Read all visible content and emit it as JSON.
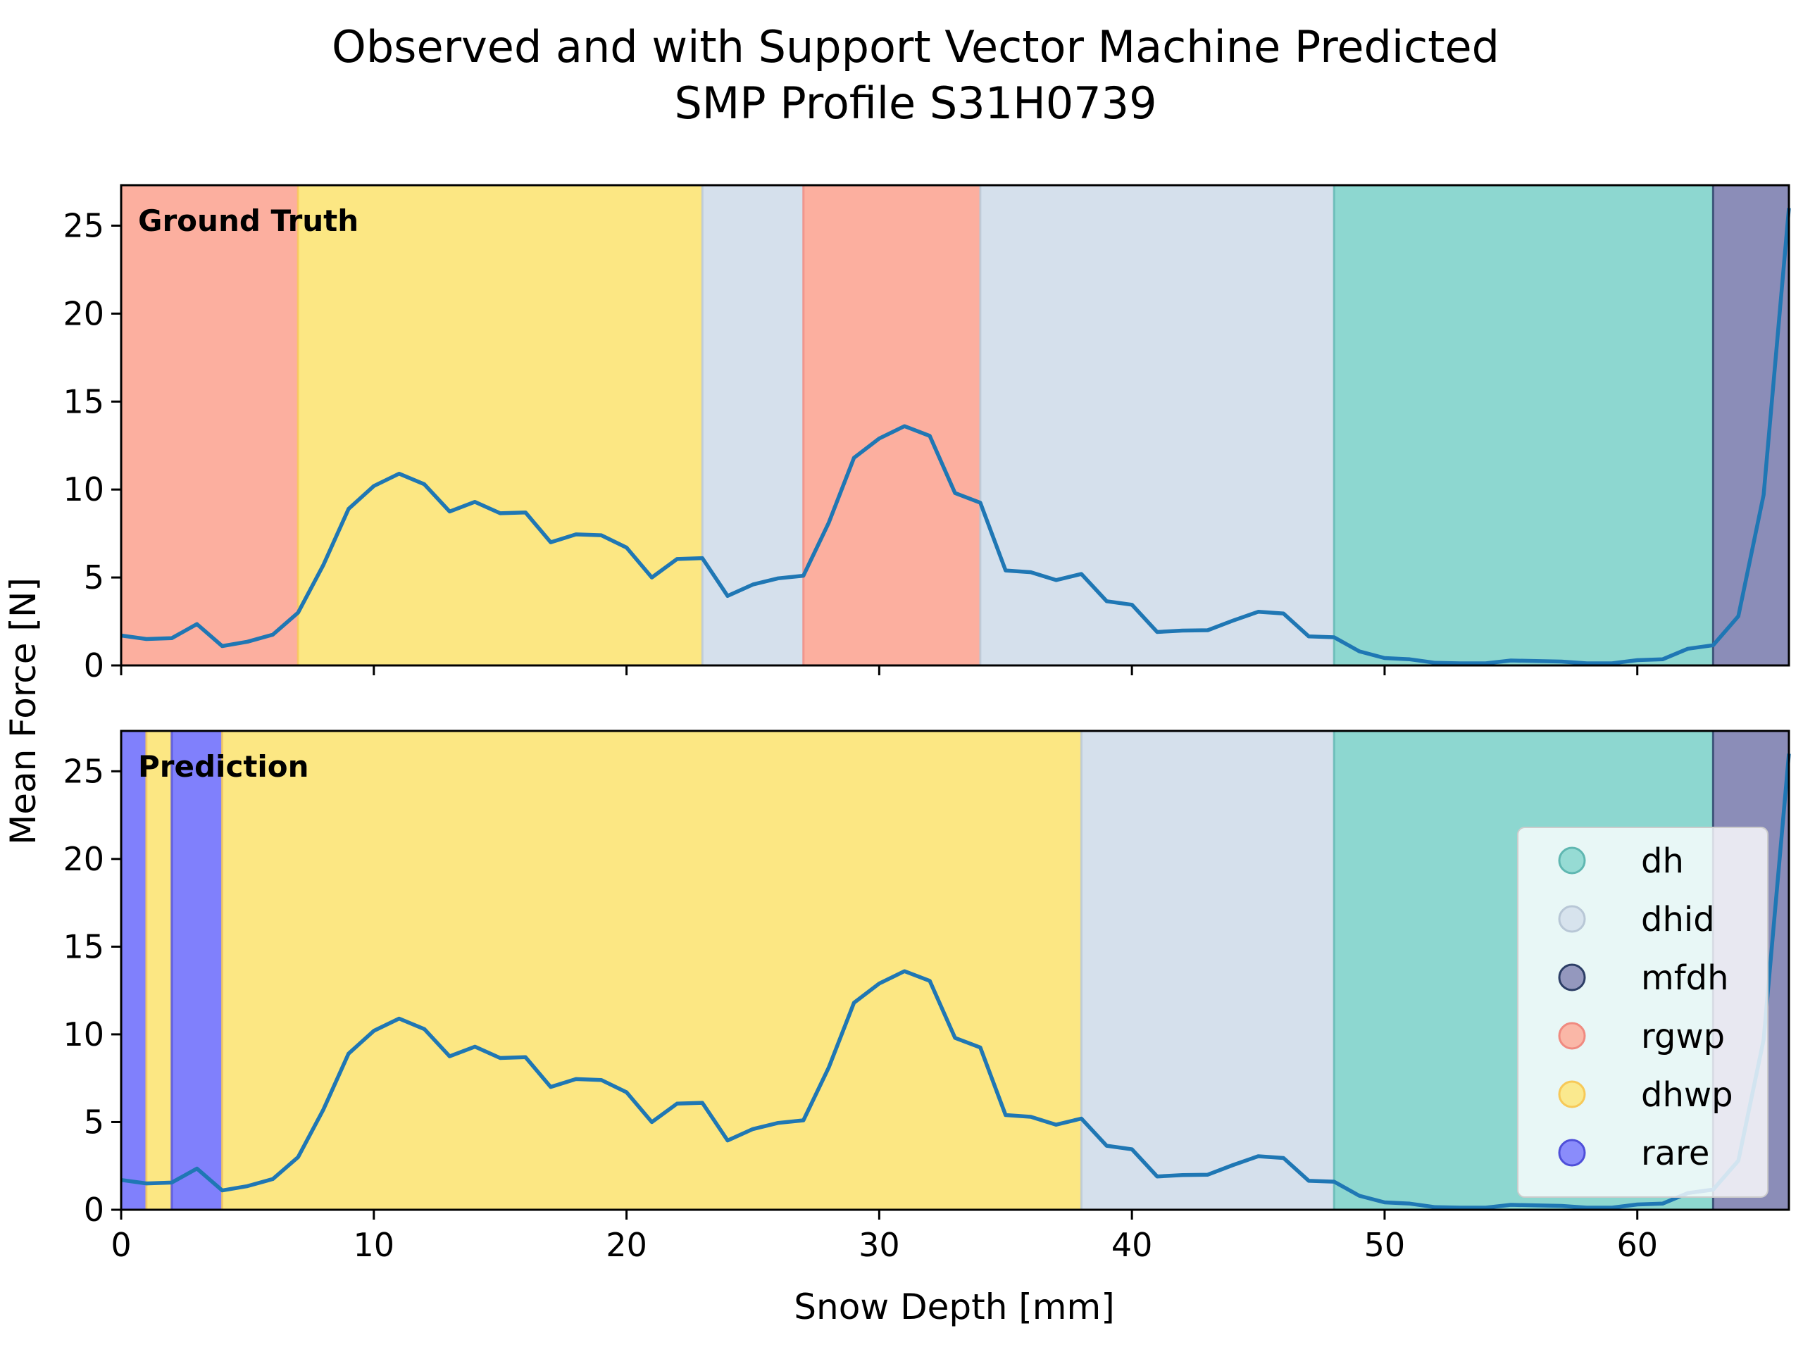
{
  "chart_data": {
    "type": "line",
    "title_line1": "Observed and with Support Vector Machine Predicted",
    "title_line2": "SMP Profile S31H0739",
    "xlabel": "Snow Depth [mm]",
    "ylabel": "Mean Force [N]",
    "xlim": [
      0,
      66
    ],
    "ylim": [
      0,
      27.3
    ],
    "xticks": [
      0,
      10,
      20,
      30,
      40,
      50,
      60
    ],
    "yticks": [
      0,
      5,
      10,
      15,
      20,
      25
    ],
    "series": [
      {
        "x": [
          0,
          1,
          2,
          3,
          4,
          5,
          6,
          7,
          8,
          9,
          10,
          11,
          12,
          13,
          14,
          15,
          16,
          17,
          18,
          19,
          20,
          21,
          22,
          23,
          24,
          25,
          26,
          27,
          28,
          29,
          30,
          31,
          32,
          33,
          34,
          35,
          36,
          37,
          38,
          39,
          40,
          41,
          42,
          43,
          44,
          45,
          46,
          47,
          48,
          49,
          50,
          51,
          52,
          53,
          54,
          55,
          56,
          57,
          58,
          59,
          60,
          61,
          62,
          63,
          64,
          65,
          66
        ],
        "y": [
          1.7,
          1.5,
          1.55,
          2.35,
          1.1,
          1.35,
          1.75,
          3.0,
          5.7,
          8.9,
          10.2,
          10.9,
          10.3,
          8.75,
          9.3,
          8.65,
          8.7,
          7.0,
          7.45,
          7.4,
          6.7,
          5.0,
          6.05,
          6.1,
          3.95,
          4.6,
          4.95,
          5.1,
          8.1,
          11.8,
          12.9,
          13.6,
          13.05,
          9.8,
          9.25,
          5.4,
          5.3,
          4.85,
          5.2,
          3.65,
          3.45,
          1.9,
          1.98,
          2.0,
          2.55,
          3.05,
          2.95,
          1.65,
          1.6,
          0.8,
          0.42,
          0.35,
          0.15,
          0.12,
          0.12,
          0.28,
          0.25,
          0.22,
          0.12,
          0.12,
          0.3,
          0.35,
          0.95,
          1.15,
          2.8,
          9.7,
          26.0
        ]
      }
    ],
    "panels": [
      {
        "label": "Ground Truth",
        "segments": [
          {
            "class": "rgwp",
            "start": 0,
            "end": 7
          },
          {
            "class": "dhwp",
            "start": 7,
            "end": 23
          },
          {
            "class": "dhid",
            "start": 23,
            "end": 27
          },
          {
            "class": "rgwp",
            "start": 27,
            "end": 34
          },
          {
            "class": "dhid",
            "start": 34,
            "end": 48
          },
          {
            "class": "dh",
            "start": 48,
            "end": 63
          },
          {
            "class": "mfdh",
            "start": 63,
            "end": 66
          }
        ]
      },
      {
        "label": "Prediction",
        "segments": [
          {
            "class": "rare",
            "start": 0,
            "end": 1
          },
          {
            "class": "dhwp",
            "start": 1,
            "end": 2
          },
          {
            "class": "rare",
            "start": 2,
            "end": 4
          },
          {
            "class": "dhwp",
            "start": 4,
            "end": 38
          },
          {
            "class": "dhid",
            "start": 38,
            "end": 48
          },
          {
            "class": "dh",
            "start": 48,
            "end": 63
          },
          {
            "class": "mfdh",
            "start": 63,
            "end": 66
          }
        ]
      }
    ],
    "classes": [
      {
        "name": "dh",
        "color": "#8dd7d0",
        "edge": "#5fb7b1"
      },
      {
        "name": "dhid",
        "color": "#d5e0ec",
        "edge": "#b8c7d6"
      },
      {
        "name": "mfdh",
        "color": "#8b8db8",
        "edge": "#2c3e66"
      },
      {
        "name": "rgwp",
        "color": "#fcaf9f",
        "edge": "#f08a80"
      },
      {
        "name": "dhwp",
        "color": "#fce783",
        "edge": "#f7c958"
      },
      {
        "name": "rare",
        "color": "#8080fc",
        "edge": "#4f4fd9"
      }
    ],
    "legend_position": "lower-right",
    "line_color": "#1f77b4",
    "grid": false
  }
}
